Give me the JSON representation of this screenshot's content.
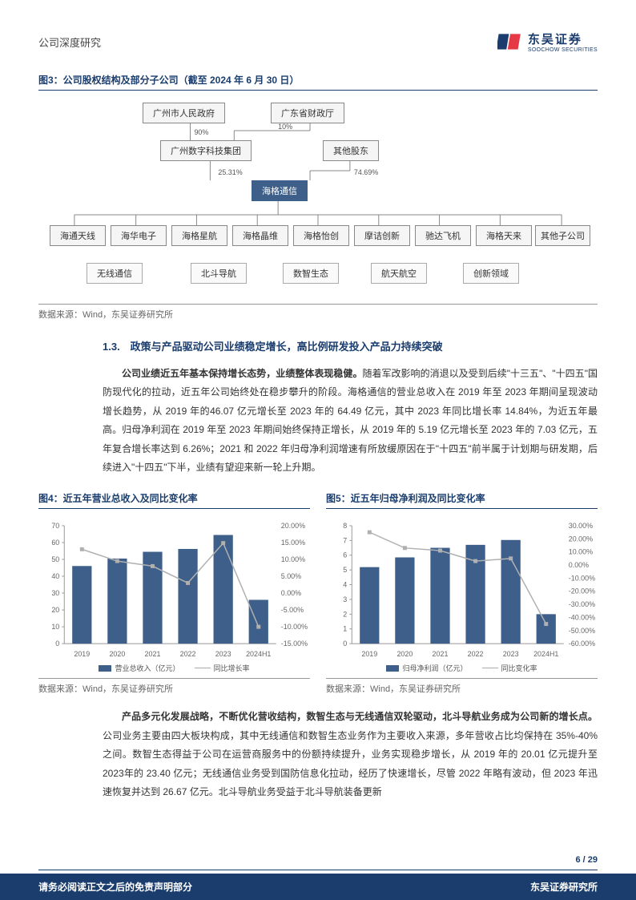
{
  "header": {
    "title": "公司深度研究",
    "logo_cn": "东吴证券",
    "logo_en": "SOOCHOW SECURITIES"
  },
  "fig3": {
    "title": "图3：公司股权结构及部分子公司（截至 2024 年 6 月 30 日）",
    "nodes": {
      "gz_gov": "广州市人民政府",
      "gd_fin": "广东省财政厅",
      "gz_digi": "广州数字科技集团",
      "other_sh": "其他股东",
      "haige": "海格通信",
      "sub1": "海通天线",
      "sub2": "海华电子",
      "sub3": "海格星航",
      "sub4": "海格晶维",
      "sub5": "海格怡创",
      "sub6": "摩诘创新",
      "sub7": "驰达飞机",
      "sub8": "海格天来",
      "sub9": "其他子公司",
      "cat1": "无线通信",
      "cat2": "北斗导航",
      "cat3": "数智生态",
      "cat4": "航天航空",
      "cat5": "创新领域"
    },
    "pct": {
      "p90": "90%",
      "p10": "10%",
      "p25": "25.31%",
      "p74": "74.69%"
    },
    "source": "数据来源：Wind，东吴证券研究所"
  },
  "section": {
    "num_title": "1.3.　政策与产品驱动公司业绩稳定增长，高比例研发投入产品力持续突破",
    "p1_bold": "公司业绩近五年基本保持增长态势，业绩整体表现稳健。",
    "p1_rest": "随着军改影响的消退以及受到后续\"十三五\"、\"十四五\"国防现代化的拉动，近五年公司始终处在稳步攀升的阶段。海格通信的营业总收入在 2019 年至 2023 年期间呈现波动增长趋势，从 2019 年的46.07 亿元增长至 2023 年的 64.49 亿元，其中 2023 年同比增长率 14.84%，为近五年最高。归母净利润在 2019 年至 2023 年期间始终保持正增长，从 2019 年的 5.19 亿元增长至 2023 年的 7.03 亿元，五年复合增长率达到 6.26%；2021 和 2022 年归母净利润增速有所放缓原因在于\"十四五\"前半属于计划期与研发期，后续进入\"十四五\"下半，业绩有望迎来新一轮上升期。"
  },
  "fig4": {
    "title": "图4：近五年营业总收入及同比变化率",
    "categories": [
      "2019",
      "2020",
      "2021",
      "2022",
      "2023",
      "2024H1"
    ],
    "bars": [
      46.07,
      50.5,
      54.5,
      56.2,
      64.49,
      26
    ],
    "line_pct": [
      13,
      9.5,
      8,
      3,
      14.84,
      -10
    ],
    "y1_max": 70,
    "y1_step": 10,
    "y2_min": -15,
    "y2_max": 20,
    "y2_step": 5,
    "bar_color": "#3d5f8a",
    "line_color": "#b0b0b0",
    "legend_bar": "营业总收入（亿元）",
    "legend_line": "同比增长率",
    "source": "数据来源：Wind，东吴证券研究所"
  },
  "fig5": {
    "title": "图5：近五年归母净利润及同比变化率",
    "categories": [
      "2019",
      "2020",
      "2021",
      "2022",
      "2023",
      "2024H1"
    ],
    "bars": [
      5.19,
      5.85,
      6.5,
      6.7,
      7.03,
      2.0
    ],
    "line_pct": [
      25,
      13,
      11,
      3,
      5,
      -45
    ],
    "y1_max": 8,
    "y1_step": 1,
    "y2_min": -60,
    "y2_max": 30,
    "y2_step": 10,
    "bar_color": "#3d5f8a",
    "line_color": "#b0b0b0",
    "legend_bar": "归母净利润（亿元）",
    "legend_line": "同比变化率",
    "source": "数据来源：Wind，东吴证券研究所"
  },
  "p2": {
    "bold": "产品多元化发展战略，不断优化营收结构，数智生态与无线通信双轮驱动，北斗导航业务成为公司新的增长点。",
    "rest": "公司业务主要由四大板块构成，其中无线通信和数智生态业务作为主要收入来源，多年营收占比均保持在 35%-40%之间。数智生态得益于公司在运营商服务中的份额持续提升，业务实现稳步增长，从 2019 年的 20.01 亿元提升至 2023年的 23.40 亿元；无线通信业务受到国防信息化拉动，经历了快速增长，尽管 2022 年略有波动，但 2023 年迅速恢复并达到 26.67 亿元。北斗导航业务受益于北斗导航装备更新"
  },
  "footer": {
    "page": "6 / 29",
    "left": "请务必阅读正文之后的免责声明部分",
    "right": "东吴证券研究所"
  }
}
